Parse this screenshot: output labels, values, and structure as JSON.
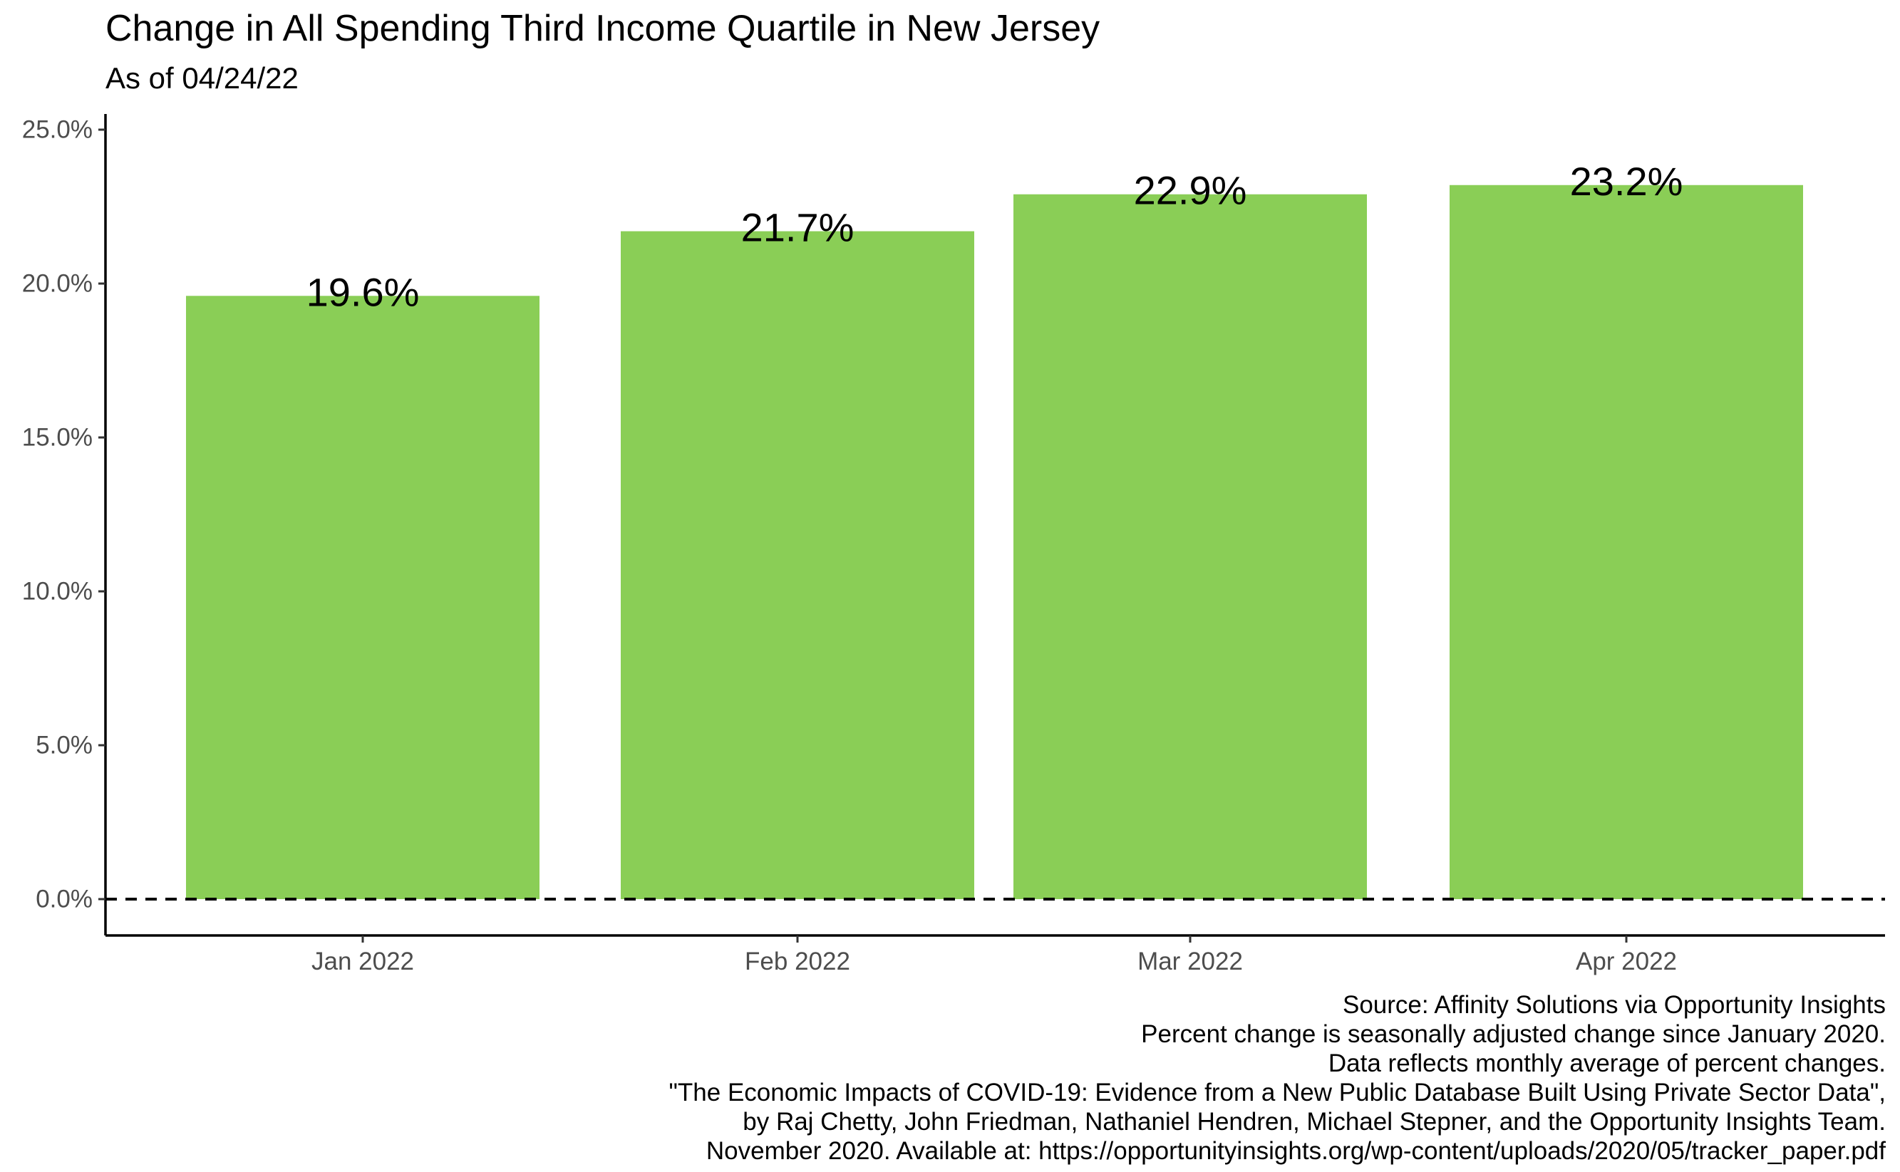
{
  "chart_data": {
    "type": "bar",
    "title": "Change in All Spending Third Income Quartile in New Jersey",
    "subtitle": "As of 04/24/22",
    "categories": [
      "Jan 2022",
      "Feb 2022",
      "Mar 2022",
      "Apr 2022"
    ],
    "values": [
      19.6,
      21.7,
      22.9,
      23.2
    ],
    "data_labels": [
      "19.6%",
      "21.7%",
      "22.9%",
      "23.2%"
    ],
    "ylim": [
      0,
      25
    ],
    "y_ticks": [
      0,
      5,
      10,
      15,
      20,
      25
    ],
    "y_tick_labels": [
      "0.0%",
      "5.0%",
      "10.0%",
      "15.0%",
      "20.0%",
      "25.0%"
    ],
    "xlabel": "",
    "ylabel": "",
    "bar_color": "#8ACE56",
    "reference_line": {
      "y": 0,
      "style": "dashed"
    },
    "grid": false,
    "legend": "none"
  },
  "caption": {
    "lines": [
      "Source: Affinity Solutions via Opportunity Insights",
      "Percent change is seasonally adjusted change since January 2020.",
      "Data reflects monthly average of percent changes.",
      "\"The Economic Impacts of COVID-19: Evidence from a New Public Database Built Using Private Sector Data\",",
      "by Raj Chetty, John Friedman, Nathaniel Hendren, Michael Stepner, and the Opportunity Insights Team.",
      "November 2020. Available at: https://opportunityinsights.org/wp-content/uploads/2020/05/tracker_paper.pdf"
    ]
  }
}
